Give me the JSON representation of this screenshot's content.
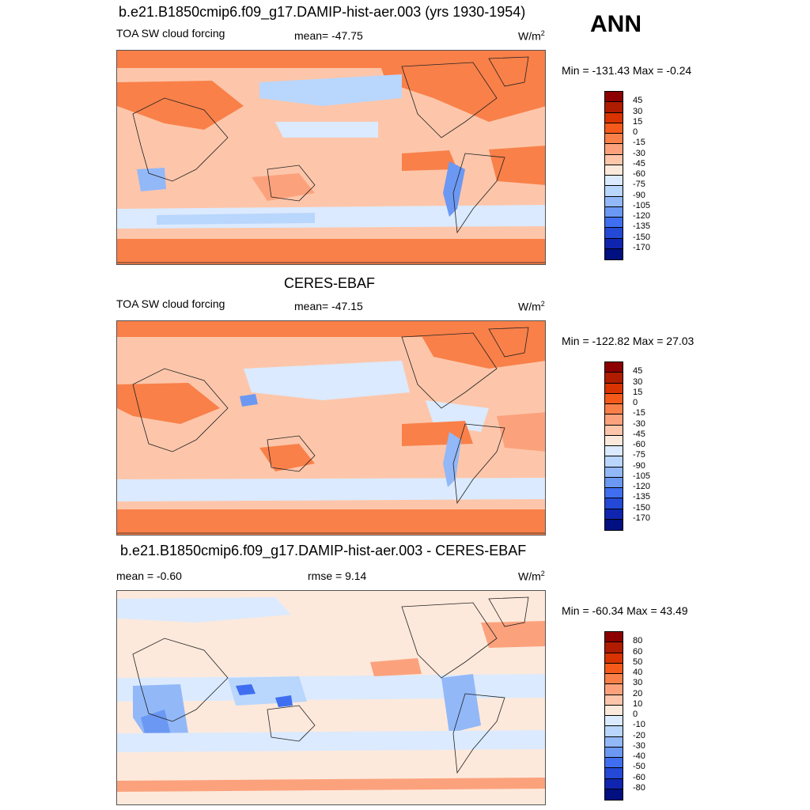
{
  "season": "ANN",
  "panels": [
    {
      "title": "b.e21.B1850cmip6.f09_g17.DAMIP-hist-aer.003 (yrs 1930-1954)",
      "left_label": "TOA SW cloud forcing",
      "mid_label": "mean= -47.75",
      "units": "W/m",
      "units_sup": "2",
      "minmax": "Min = -131.43 Max =  -0.24",
      "colorbar": {
        "labels": [
          "45",
          "30",
          "15",
          "0",
          "-15",
          "-30",
          "-45",
          "-60",
          "-75",
          "-90",
          "-105",
          "-120",
          "-135",
          "-150",
          "-170"
        ],
        "colors": [
          "#8c0000",
          "#b01c00",
          "#d83300",
          "#f55a1a",
          "#f98049",
          "#fba27d",
          "#fdc6aa",
          "#fde9db",
          "#dbeafe",
          "#b9d6fc",
          "#92b8f8",
          "#6b98f3",
          "#3f6ff0",
          "#2349d6",
          "#0f25b0",
          "#001080"
        ]
      }
    },
    {
      "title": "CERES-EBAF",
      "left_label": "TOA SW cloud forcing",
      "mid_label": "mean= -47.15",
      "units": "W/m",
      "units_sup": "2",
      "minmax": "Min = -122.82 Max =  27.03",
      "colorbar": {
        "labels": [
          "45",
          "30",
          "15",
          "0",
          "-15",
          "-30",
          "-45",
          "-60",
          "-75",
          "-90",
          "-105",
          "-120",
          "-135",
          "-150",
          "-170"
        ],
        "colors": [
          "#8c0000",
          "#b01c00",
          "#d83300",
          "#f55a1a",
          "#f98049",
          "#fba27d",
          "#fdc6aa",
          "#fde9db",
          "#dbeafe",
          "#b9d6fc",
          "#92b8f8",
          "#6b98f3",
          "#3f6ff0",
          "#2349d6",
          "#0f25b0",
          "#001080"
        ]
      }
    },
    {
      "title": "b.e21.B1850cmip6.f09_g17.DAMIP-hist-aer.003 - CERES-EBAF",
      "left_label": "mean =  -0.60",
      "mid_label": "rmse =   9.14",
      "units": "W/m",
      "units_sup": "2",
      "minmax": "Min = -60.34 Max =  43.49",
      "colorbar": {
        "labels": [
          "80",
          "60",
          "50",
          "40",
          "30",
          "20",
          "10",
          "0",
          "-10",
          "-20",
          "-30",
          "-40",
          "-50",
          "-60",
          "-80"
        ],
        "colors": [
          "#8c0000",
          "#b01c00",
          "#d83300",
          "#f55a1a",
          "#f98049",
          "#fba27d",
          "#fdc6aa",
          "#fde9db",
          "#dbeafe",
          "#b9d6fc",
          "#92b8f8",
          "#6b98f3",
          "#3f6ff0",
          "#2349d6",
          "#0f25b0",
          "#001080"
        ]
      }
    }
  ]
}
